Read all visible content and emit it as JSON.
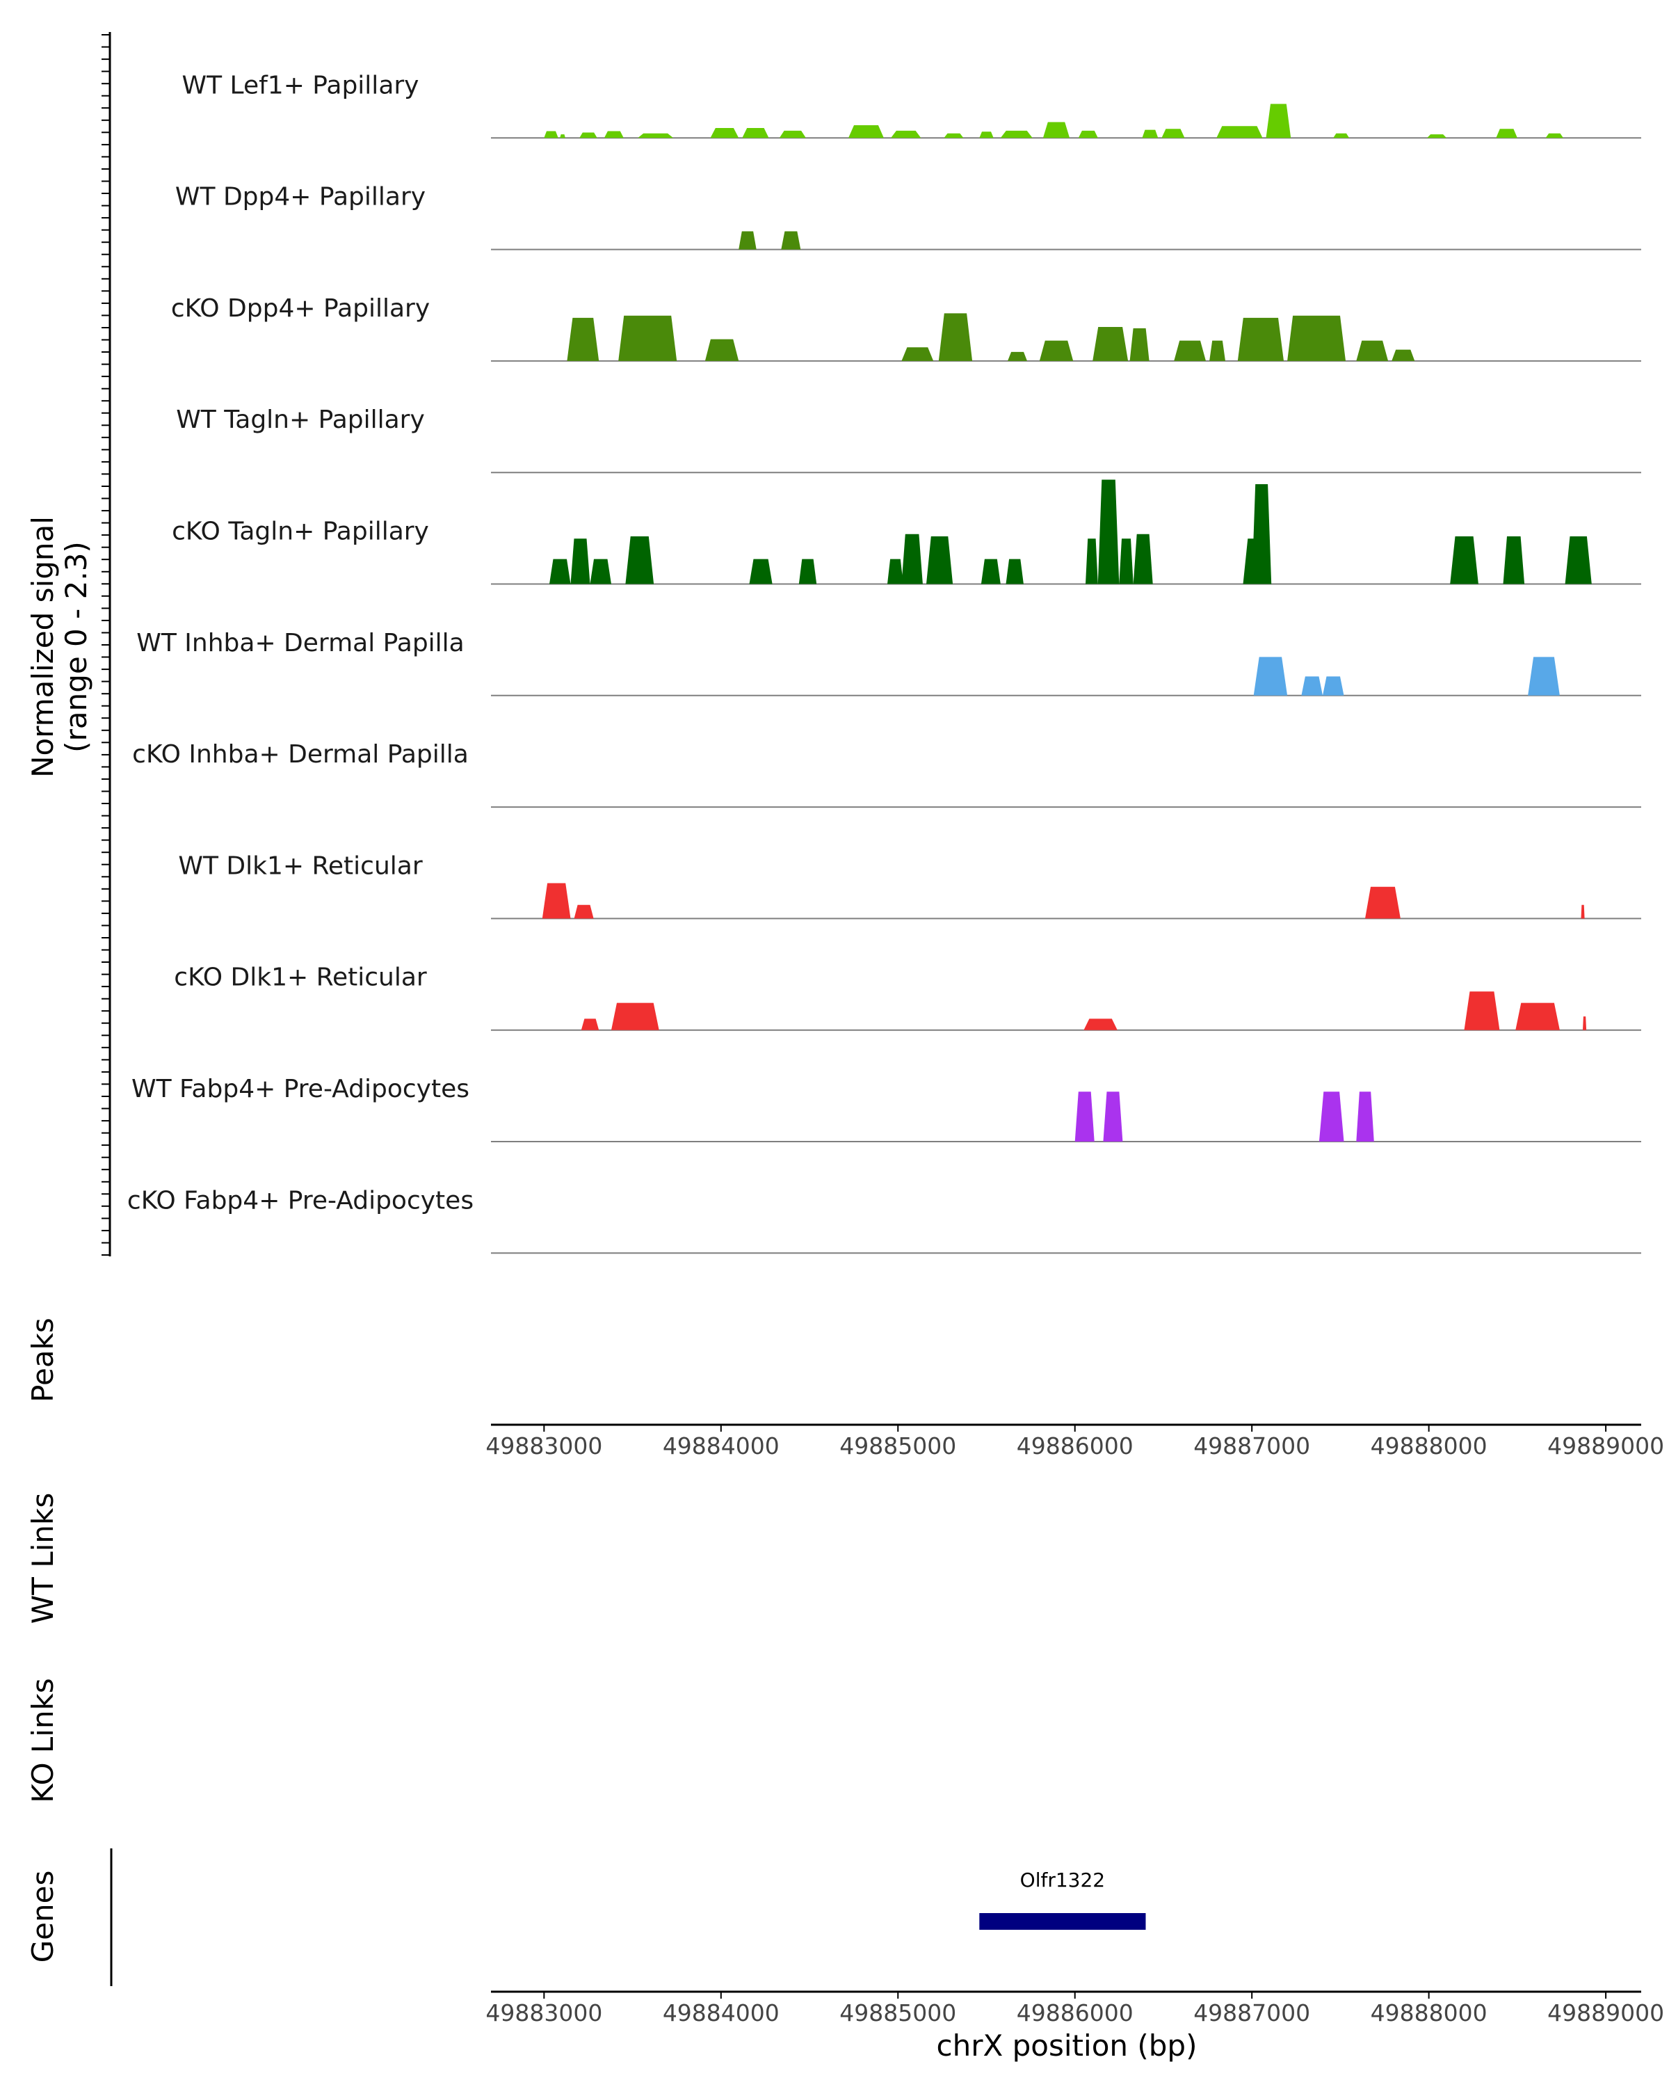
{
  "chart_data": {
    "type": "area",
    "title": "",
    "xlabel": "chrX position (bp)",
    "ylabel": "Normalized signal\n(range 0 - 2.3)",
    "xlim": [
      49882700,
      49889200
    ],
    "ylim": [
      0,
      2.3
    ],
    "xticks": [
      49883000,
      49884000,
      49885000,
      49886000,
      49887000,
      49888000,
      49889000
    ],
    "xtick_labels": [
      "49883000",
      "49884000",
      "49885000",
      "49886000",
      "49887000",
      "49888000",
      "49889000"
    ],
    "panel_labels": {
      "peaks": "Peaks",
      "wt_links": "WT Links",
      "ko_links": "KO Links",
      "genes": "Genes"
    },
    "series": [
      {
        "name": "WT Lef1+ Papillary",
        "color": "#66cc00",
        "peaks": [
          [
            49883000,
            49883080,
            0.15
          ],
          [
            49883090,
            49883120,
            0.08
          ],
          [
            49883200,
            49883300,
            0.12
          ],
          [
            49883340,
            49883450,
            0.15
          ],
          [
            49883530,
            49883730,
            0.1
          ],
          [
            49883940,
            49884100,
            0.22
          ],
          [
            49884120,
            49884270,
            0.22
          ],
          [
            49884330,
            49884480,
            0.16
          ],
          [
            49884720,
            49884920,
            0.28
          ],
          [
            49884960,
            49885130,
            0.16
          ],
          [
            49885260,
            49885370,
            0.1
          ],
          [
            49885460,
            49885540,
            0.14
          ],
          [
            49885580,
            49885760,
            0.16
          ],
          [
            49885820,
            49885970,
            0.35
          ],
          [
            49886020,
            49886130,
            0.16
          ],
          [
            49886380,
            49886470,
            0.18
          ],
          [
            49886490,
            49886620,
            0.2
          ],
          [
            49886800,
            49887060,
            0.26
          ],
          [
            49887080,
            49887220,
            0.75
          ],
          [
            49887460,
            49887550,
            0.1
          ],
          [
            49887990,
            49888100,
            0.08
          ],
          [
            49888380,
            49888500,
            0.2
          ],
          [
            49888660,
            49888760,
            0.1
          ]
        ]
      },
      {
        "name": "WT Dpp4+ Papillary",
        "color": "#4a8a0a",
        "peaks": [
          [
            49884100,
            49884200,
            0.4
          ],
          [
            49884340,
            49884450,
            0.4
          ]
        ]
      },
      {
        "name": "cKO Dpp4+ Papillary",
        "color": "#4a8a0a",
        "peaks": [
          [
            49883130,
            49883310,
            0.95
          ],
          [
            49883420,
            49883750,
            1.0
          ],
          [
            49883910,
            49884100,
            0.48
          ],
          [
            49885020,
            49885200,
            0.3
          ],
          [
            49885230,
            49885420,
            1.05
          ],
          [
            49885620,
            49885730,
            0.2
          ],
          [
            49885800,
            49885990,
            0.45
          ],
          [
            49886100,
            49886300,
            0.75
          ],
          [
            49886310,
            49886420,
            0.72
          ],
          [
            49886560,
            49886740,
            0.45
          ],
          [
            49886760,
            49886850,
            0.45
          ],
          [
            49886920,
            49887180,
            0.95
          ],
          [
            49887200,
            49887530,
            1.0
          ],
          [
            49887590,
            49887770,
            0.45
          ],
          [
            49887790,
            49887920,
            0.25
          ]
        ]
      },
      {
        "name": "WT Tagln+ Papillary",
        "color": "#006400",
        "peaks": []
      },
      {
        "name": "cKO Tagln+ Papillary",
        "color": "#006400",
        "peaks": [
          [
            49883030,
            49883150,
            0.55
          ],
          [
            49883150,
            49883260,
            1.0
          ],
          [
            49883260,
            49883380,
            0.55
          ],
          [
            49883460,
            49883620,
            1.05
          ],
          [
            49884160,
            49884290,
            0.55
          ],
          [
            49884440,
            49884540,
            0.55
          ],
          [
            49884940,
            49885030,
            0.55
          ],
          [
            49885020,
            49885140,
            1.1
          ],
          [
            49885160,
            49885310,
            1.05
          ],
          [
            49885470,
            49885580,
            0.55
          ],
          [
            49885610,
            49885710,
            0.55
          ],
          [
            49886060,
            49886130,
            1.0
          ],
          [
            49886130,
            49886250,
            2.3
          ],
          [
            49886250,
            49886330,
            1.0
          ],
          [
            49886330,
            49886440,
            1.1
          ],
          [
            49886950,
            49887100,
            1.0
          ],
          [
            49887000,
            49887110,
            2.2
          ],
          [
            49888120,
            49888280,
            1.05
          ],
          [
            49888420,
            49888540,
            1.05
          ],
          [
            49888770,
            49888920,
            1.05
          ]
        ]
      },
      {
        "name": "WT Inhba+ Dermal Papilla",
        "color": "#58a8e8",
        "peaks": [
          [
            49887010,
            49887200,
            0.85
          ],
          [
            49887280,
            49887400,
            0.42
          ],
          [
            49887400,
            49887520,
            0.42
          ],
          [
            49888560,
            49888740,
            0.85
          ]
        ]
      },
      {
        "name": "cKO Inhba+ Dermal Papilla",
        "color": "#58a8e8",
        "peaks": []
      },
      {
        "name": "WT Dlk1+ Reticular",
        "color": "#f03030",
        "peaks": [
          [
            49882990,
            49883150,
            0.78
          ],
          [
            49883170,
            49883280,
            0.3
          ],
          [
            49887640,
            49887840,
            0.7
          ],
          [
            49888860,
            49888880,
            0.3
          ]
        ]
      },
      {
        "name": "cKO Dlk1+ Reticular",
        "color": "#f03030",
        "peaks": [
          [
            49883210,
            49883310,
            0.25
          ],
          [
            49883380,
            49883650,
            0.6
          ],
          [
            49886050,
            49886240,
            0.25
          ],
          [
            49888200,
            49888400,
            0.85
          ],
          [
            49888490,
            49888740,
            0.6
          ],
          [
            49888870,
            49888890,
            0.3
          ]
        ]
      },
      {
        "name": "WT Fabp4+ Pre-Adipocytes",
        "color": "#aa33ee",
        "peaks": [
          [
            49886000,
            49886110,
            1.1
          ],
          [
            49886160,
            49886270,
            1.1
          ],
          [
            49887380,
            49887520,
            1.1
          ],
          [
            49887590,
            49887690,
            1.1
          ]
        ]
      },
      {
        "name": "cKO Fabp4+ Pre-Adipocytes",
        "color": "#aa33ee",
        "peaks": []
      }
    ],
    "genes": [
      {
        "name": "Olfr1322",
        "start": 49885460,
        "end": 49886400,
        "color": "#000080"
      }
    ]
  }
}
